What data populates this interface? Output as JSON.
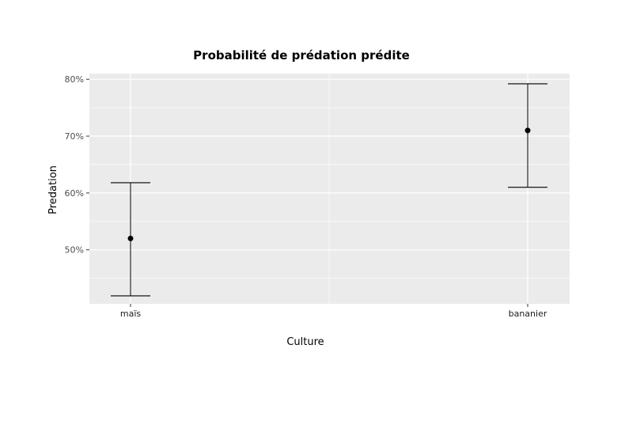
{
  "chart_data": {
    "type": "errorbar",
    "title": "Probabilité de prédation prédite",
    "xlabel": "Culture",
    "ylabel": "Predation",
    "categories": [
      "maïs",
      "bananier"
    ],
    "points": [
      {
        "category": "maïs",
        "estimate": 0.52,
        "lower": 0.419,
        "upper": 0.618
      },
      {
        "category": "bananier",
        "estimate": 0.71,
        "lower": 0.61,
        "upper": 0.792
      }
    ],
    "yticks": [
      0.5,
      0.6,
      0.7,
      0.8
    ],
    "ytick_labels": [
      "50%",
      "60%",
      "70%",
      "80%"
    ],
    "ylim": [
      0.405,
      0.81
    ],
    "grid": true,
    "panel_background": "#ebebeb",
    "grid_color": "#ffffff",
    "mark_color": "#000000"
  }
}
